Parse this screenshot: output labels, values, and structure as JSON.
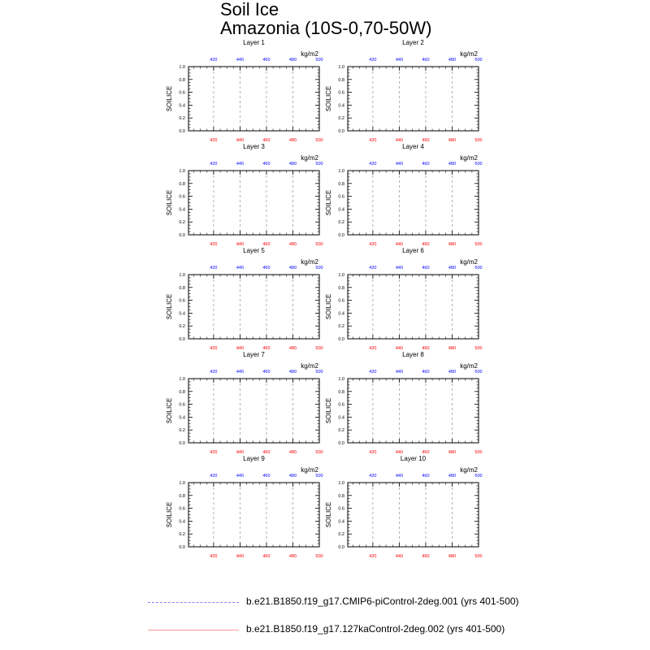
{
  "title": {
    "line1": "Soil Ice",
    "line2": "Amazonia (10S-0,70-50W)"
  },
  "colors": {
    "top_axis": "#0000ff",
    "bottom_axis": "#ff0000",
    "series_cmip6": "#8080ff",
    "series_127ka": "#ff9999",
    "gridline": "#a0a0a0"
  },
  "chart_data": [
    {
      "type": "line",
      "title": "Layer 1",
      "ylabel": "SOILICE",
      "units": "kg/m2",
      "xlim": [
        401,
        500
      ],
      "ylim": [
        0.0,
        1.0
      ],
      "x_ticks": [
        "420",
        "440",
        "460",
        "480",
        "500"
      ],
      "y_ticks": [
        "0.0",
        "0.2",
        "0.4",
        "0.6",
        "0.8",
        "1.0"
      ],
      "series": [
        {
          "name": "b.e21.B1850.f19_g17.CMIP6-piControl-2deg.001 (yrs 401-500)",
          "values": []
        },
        {
          "name": "b.e21.B1850.f19_g17.127kaControl-2deg.002 (yrs 401-500)",
          "values": []
        }
      ]
    },
    {
      "type": "line",
      "title": "Layer 2",
      "ylabel": "SOILICE",
      "units": "kg/m2",
      "xlim": [
        401,
        500
      ],
      "ylim": [
        0.0,
        1.0
      ],
      "x_ticks": [
        "420",
        "440",
        "460",
        "480",
        "500"
      ],
      "y_ticks": [
        "0.0",
        "0.2",
        "0.4",
        "0.6",
        "0.8",
        "1.0"
      ],
      "series": [
        {
          "name": "b.e21.B1850.f19_g17.CMIP6-piControl-2deg.001 (yrs 401-500)",
          "values": []
        },
        {
          "name": "b.e21.B1850.f19_g17.127kaControl-2deg.002 (yrs 401-500)",
          "values": []
        }
      ]
    },
    {
      "type": "line",
      "title": "Layer 3",
      "ylabel": "SOILICE",
      "units": "kg/m2",
      "xlim": [
        401,
        500
      ],
      "ylim": [
        0.0,
        1.0
      ],
      "x_ticks": [
        "420",
        "440",
        "460",
        "480",
        "500"
      ],
      "y_ticks": [
        "0.0",
        "0.2",
        "0.4",
        "0.6",
        "0.8",
        "1.0"
      ],
      "series": [
        {
          "name": "b.e21.B1850.f19_g17.CMIP6-piControl-2deg.001 (yrs 401-500)",
          "values": []
        },
        {
          "name": "b.e21.B1850.f19_g17.127kaControl-2deg.002 (yrs 401-500)",
          "values": []
        }
      ]
    },
    {
      "type": "line",
      "title": "Layer 4",
      "ylabel": "SOILICE",
      "units": "kg/m2",
      "xlim": [
        401,
        500
      ],
      "ylim": [
        0.0,
        1.0
      ],
      "x_ticks": [
        "420",
        "440",
        "460",
        "480",
        "500"
      ],
      "y_ticks": [
        "0.0",
        "0.2",
        "0.4",
        "0.6",
        "0.8",
        "1.0"
      ],
      "series": [
        {
          "name": "b.e21.B1850.f19_g17.CMIP6-piControl-2deg.001 (yrs 401-500)",
          "values": []
        },
        {
          "name": "b.e21.B1850.f19_g17.127kaControl-2deg.002 (yrs 401-500)",
          "values": []
        }
      ]
    },
    {
      "type": "line",
      "title": "Layer 5",
      "ylabel": "SOILICE",
      "units": "kg/m2",
      "xlim": [
        401,
        500
      ],
      "ylim": [
        0.0,
        1.0
      ],
      "x_ticks": [
        "420",
        "440",
        "460",
        "480",
        "500"
      ],
      "y_ticks": [
        "0.0",
        "0.2",
        "0.4",
        "0.6",
        "0.8",
        "1.0"
      ],
      "series": [
        {
          "name": "b.e21.B1850.f19_g17.CMIP6-piControl-2deg.001 (yrs 401-500)",
          "values": []
        },
        {
          "name": "b.e21.B1850.f19_g17.127kaControl-2deg.002 (yrs 401-500)",
          "values": []
        }
      ]
    },
    {
      "type": "line",
      "title": "Layer 6",
      "ylabel": "SOILICE",
      "units": "kg/m2",
      "xlim": [
        401,
        500
      ],
      "ylim": [
        0.0,
        1.0
      ],
      "x_ticks": [
        "420",
        "440",
        "460",
        "480",
        "500"
      ],
      "y_ticks": [
        "0.0",
        "0.2",
        "0.4",
        "0.6",
        "0.8",
        "1.0"
      ],
      "series": [
        {
          "name": "b.e21.B1850.f19_g17.CMIP6-piControl-2deg.001 (yrs 401-500)",
          "values": []
        },
        {
          "name": "b.e21.B1850.f19_g17.127kaControl-2deg.002 (yrs 401-500)",
          "values": []
        }
      ]
    },
    {
      "type": "line",
      "title": "Layer 7",
      "ylabel": "SOILICE",
      "units": "kg/m2",
      "xlim": [
        401,
        500
      ],
      "ylim": [
        0.0,
        1.0
      ],
      "x_ticks": [
        "420",
        "440",
        "460",
        "480",
        "500"
      ],
      "y_ticks": [
        "0.0",
        "0.2",
        "0.4",
        "0.6",
        "0.8",
        "1.0"
      ],
      "series": [
        {
          "name": "b.e21.B1850.f19_g17.CMIP6-piControl-2deg.001 (yrs 401-500)",
          "values": []
        },
        {
          "name": "b.e21.B1850.f19_g17.127kaControl-2deg.002 (yrs 401-500)",
          "values": []
        }
      ]
    },
    {
      "type": "line",
      "title": "Layer 8",
      "ylabel": "SOILICE",
      "units": "kg/m2",
      "xlim": [
        401,
        500
      ],
      "ylim": [
        0.0,
        1.0
      ],
      "x_ticks": [
        "420",
        "440",
        "460",
        "480",
        "500"
      ],
      "y_ticks": [
        "0.0",
        "0.2",
        "0.4",
        "0.6",
        "0.8",
        "1.0"
      ],
      "series": [
        {
          "name": "b.e21.B1850.f19_g17.CMIP6-piControl-2deg.001 (yrs 401-500)",
          "values": []
        },
        {
          "name": "b.e21.B1850.f19_g17.127kaControl-2deg.002 (yrs 401-500)",
          "values": []
        }
      ]
    },
    {
      "type": "line",
      "title": "Layer 9",
      "ylabel": "SOILICE",
      "units": "kg/m2",
      "xlim": [
        401,
        500
      ],
      "ylim": [
        0.0,
        1.0
      ],
      "x_ticks": [
        "420",
        "440",
        "460",
        "480",
        "500"
      ],
      "y_ticks": [
        "0.0",
        "0.2",
        "0.4",
        "0.6",
        "0.8",
        "1.0"
      ],
      "series": [
        {
          "name": "b.e21.B1850.f19_g17.CMIP6-piControl-2deg.001 (yrs 401-500)",
          "values": []
        },
        {
          "name": "b.e21.B1850.f19_g17.127kaControl-2deg.002 (yrs 401-500)",
          "values": []
        }
      ]
    },
    {
      "type": "line",
      "title": "Layer 10",
      "ylabel": "SOILICE",
      "units": "kg/m2",
      "xlim": [
        401,
        500
      ],
      "ylim": [
        0.0,
        1.0
      ],
      "x_ticks": [
        "420",
        "440",
        "460",
        "480",
        "500"
      ],
      "y_ticks": [
        "0.0",
        "0.2",
        "0.4",
        "0.6",
        "0.8",
        "1.0"
      ],
      "series": [
        {
          "name": "b.e21.B1850.f19_g17.CMIP6-piControl-2deg.001 (yrs 401-500)",
          "values": []
        },
        {
          "name": "b.e21.B1850.f19_g17.127kaControl-2deg.002 (yrs 401-500)",
          "values": []
        }
      ]
    }
  ],
  "legend": [
    {
      "label": "b.e21.B1850.f19_g17.CMIP6-piControl-2deg.001 (yrs 401-500)",
      "style": "dashed",
      "color": "#8080ff"
    },
    {
      "label": "b.e21.B1850.f19_g17.127kaControl-2deg.002 (yrs 401-500)",
      "style": "solid",
      "color": "#ff9999"
    }
  ]
}
